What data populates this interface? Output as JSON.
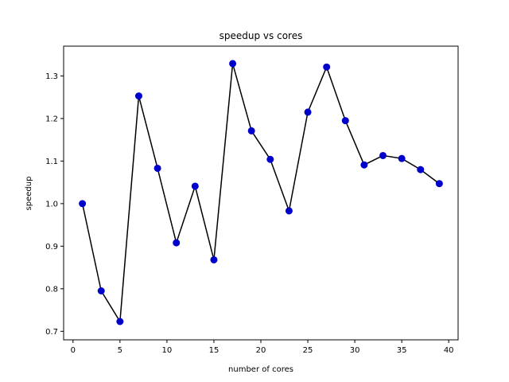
{
  "chart_data": {
    "type": "line",
    "title": "speedup vs cores",
    "xlabel": "number of cores",
    "ylabel": "speedup",
    "xlim": [
      -1,
      41
    ],
    "ylim": [
      0.68,
      1.37
    ],
    "xticks": [
      0,
      5,
      10,
      15,
      20,
      25,
      30,
      35,
      40
    ],
    "xtick_labels": [
      "0",
      "5",
      "10",
      "15",
      "20",
      "25",
      "30",
      "35",
      "40"
    ],
    "yticks": [
      0.7,
      0.8,
      0.9,
      1.0,
      1.1,
      1.2,
      1.3
    ],
    "ytick_labels": [
      "0.7",
      "0.8",
      "0.9",
      "1.0",
      "1.1",
      "1.2",
      "1.3"
    ],
    "grid": false,
    "line_color": "#000000",
    "marker_color": "#0000cc",
    "series": [
      {
        "x": [
          1,
          3,
          5,
          7,
          9,
          11,
          13,
          15,
          17,
          19,
          21,
          23,
          25,
          27,
          29,
          31,
          33,
          35,
          37,
          39
        ],
        "values": [
          1.0,
          0.795,
          0.723,
          1.253,
          1.083,
          0.908,
          1.041,
          0.868,
          1.329,
          1.171,
          1.104,
          0.983,
          1.215,
          1.321,
          1.195,
          1.091,
          1.113,
          1.106,
          1.08,
          1.047
        ]
      }
    ]
  }
}
